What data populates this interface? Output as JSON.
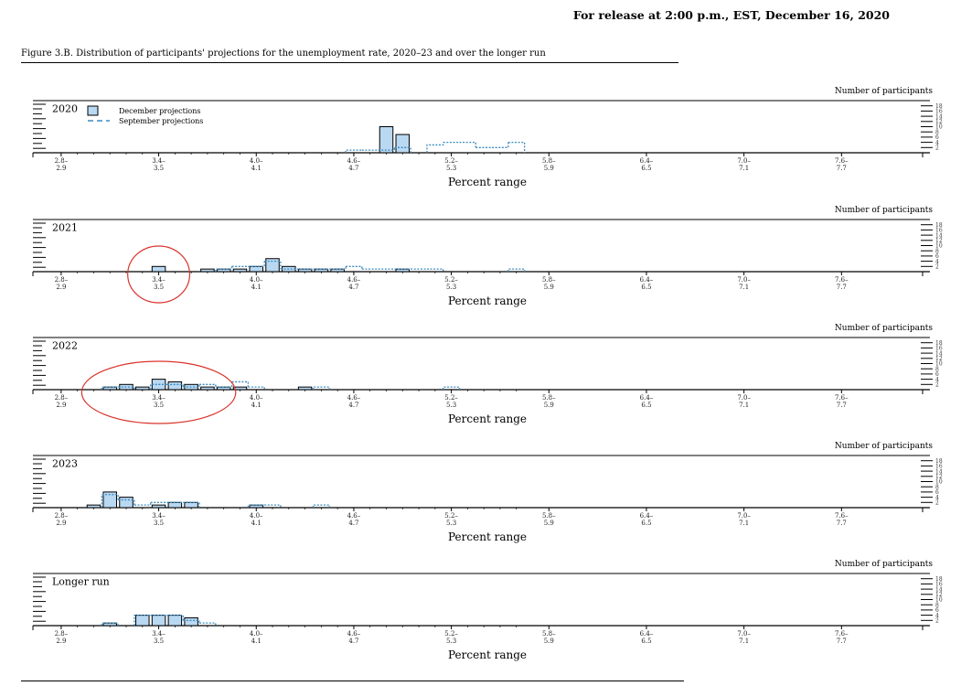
{
  "header": {
    "release": "For release at 2:00 p.m., EST, December 16, 2020",
    "figure_title": "Figure 3.B. Distribution of participants' projections for the unemployment rate, 2020–23 and over the longer run"
  },
  "colors": {
    "december_fill": "#b9d8f2",
    "september_line": "#3b8bbf",
    "annotation_circle": "#d9342b"
  },
  "chart_data": [
    {
      "type": "bar",
      "panel_label": "2020",
      "ylabel": "Number of participants",
      "xlabel": "Percent range",
      "categories": [
        "2.8–2.9",
        "3.0–3.1",
        "3.2–3.3",
        "3.4–3.5",
        "3.6–3.7",
        "3.8–3.9",
        "4.0–4.1",
        "4.2–4.3",
        "4.4–4.5",
        "4.6–4.7",
        "4.8–4.9",
        "5.0–5.1",
        "5.2–5.3",
        "5.4–5.5",
        "5.6–5.7",
        "5.8–5.9",
        "6.0–6.1",
        "6.2–6.3",
        "6.4–6.5",
        "6.6–6.7",
        "6.8–6.9",
        "7.0–7.1",
        "7.2–7.3",
        "7.4–7.5",
        "7.6–7.7",
        "7.8–7.9",
        "8.0–8.1",
        "8.2–8.3",
        "8.4–8.5"
      ],
      "tick_labels": [
        [
          "2.8–",
          "2.9"
        ],
        [
          "3.4–",
          "3.5"
        ],
        [
          "4.0–",
          "4.1"
        ],
        [
          "4.6–",
          "4.7"
        ],
        [
          "5.2–",
          "5.3"
        ],
        [
          "5.8–",
          "5.9"
        ],
        [
          "6.4–",
          "6.5"
        ],
        [
          "7.0–",
          "7.1"
        ],
        [
          "7.6–",
          "7.7"
        ]
      ],
      "ylim": [
        0,
        18
      ],
      "yticks": [
        "2",
        "4",
        "6",
        "8",
        "10",
        "12",
        "14",
        "16",
        "18"
      ],
      "legend": {
        "placement": "top-left",
        "december": "December projections",
        "september": "September projections"
      },
      "series": [
        {
          "name": "December projections",
          "values": [
            0,
            0,
            0,
            0,
            0,
            0,
            0,
            0,
            0,
            0,
            0,
            0,
            0,
            0,
            0,
            0,
            0,
            0,
            0,
            0,
            10,
            7,
            0,
            0,
            0,
            0,
            0,
            0,
            0
          ]
        },
        {
          "name": "September projections",
          "values": [
            0,
            0,
            0,
            0,
            0,
            0,
            0,
            0,
            0,
            0,
            0,
            0,
            0,
            0,
            0,
            0,
            0,
            0,
            1,
            1,
            1,
            2,
            0,
            3,
            4,
            4,
            2,
            2,
            4
          ]
        }
      ],
      "annotation": null
    },
    {
      "type": "bar",
      "panel_label": "2021",
      "ylabel": "Number of participants",
      "xlabel": "Percent range",
      "categories": [
        "2.8–2.9",
        "3.0–3.1",
        "3.2–3.3",
        "3.4–3.5",
        "3.6–3.7",
        "3.8–3.9",
        "4.0–4.1",
        "4.2–4.3",
        "4.4–4.5",
        "4.6–4.7",
        "4.8–4.9",
        "5.0–5.1",
        "5.2–5.3",
        "5.4–5.5",
        "5.6–5.7",
        "5.8–5.9",
        "6.0–6.1",
        "6.2–6.3",
        "6.4–6.5",
        "6.6–6.7",
        "6.8–6.9",
        "7.0–7.1",
        "7.2–7.3",
        "7.4–7.5",
        "7.6–7.7",
        "7.8–7.9",
        "8.0–8.1",
        "8.2–8.3",
        "8.4–8.5"
      ],
      "tick_labels": [
        [
          "2.8–",
          "2.9"
        ],
        [
          "3.4–",
          "3.5"
        ],
        [
          "4.0–",
          "4.1"
        ],
        [
          "4.6–",
          "4.7"
        ],
        [
          "5.2–",
          "5.3"
        ],
        [
          "5.8–",
          "5.9"
        ],
        [
          "6.4–",
          "6.5"
        ],
        [
          "7.0–",
          "7.1"
        ],
        [
          "7.6–",
          "7.7"
        ]
      ],
      "ylim": [
        0,
        18
      ],
      "yticks": [
        "2",
        "4",
        "6",
        "8",
        "10",
        "12",
        "14",
        "16",
        "18"
      ],
      "legend": null,
      "series": [
        {
          "name": "December projections",
          "values": [
            0,
            0,
            0,
            0,
            0,
            0,
            2,
            0,
            0,
            1,
            1,
            1,
            2,
            5,
            2,
            1,
            1,
            1,
            0,
            0,
            0,
            1,
            0,
            0,
            0,
            0,
            0,
            0,
            0
          ]
        },
        {
          "name": "September projections",
          "values": [
            0,
            0,
            0,
            0,
            0,
            0,
            0,
            0,
            0,
            0,
            1,
            2,
            2,
            4,
            1,
            1,
            1,
            1,
            2,
            1,
            1,
            1,
            1,
            1,
            0,
            0,
            0,
            0,
            1
          ]
        }
      ],
      "annotation": {
        "from": 6,
        "to": 6
      }
    },
    {
      "type": "bar",
      "panel_label": "2022",
      "ylabel": "Number of participants",
      "xlabel": "Percent range",
      "categories": [
        "2.8–2.9",
        "3.0–3.1",
        "3.2–3.3",
        "3.4–3.5",
        "3.6–3.7",
        "3.8–3.9",
        "4.0–4.1",
        "4.2–4.3",
        "4.4–4.5",
        "4.6–4.7",
        "4.8–4.9",
        "5.0–5.1",
        "5.2–5.3",
        "5.4–5.5",
        "5.6–5.7",
        "5.8–5.9",
        "6.0–6.1",
        "6.2–6.3",
        "6.4–6.5",
        "6.6–6.7",
        "6.8–6.9",
        "7.0–7.1",
        "7.2–7.3",
        "7.4–7.5",
        "7.6–7.7",
        "7.8–7.9",
        "8.0–8.1",
        "8.2–8.3",
        "8.4–8.5"
      ],
      "tick_labels": [
        [
          "2.8–",
          "2.9"
        ],
        [
          "3.4–",
          "3.5"
        ],
        [
          "4.0–",
          "4.1"
        ],
        [
          "4.6–",
          "4.7"
        ],
        [
          "5.2–",
          "5.3"
        ],
        [
          "5.8–",
          "5.9"
        ],
        [
          "6.4–",
          "6.5"
        ],
        [
          "7.0–",
          "7.1"
        ],
        [
          "7.6–",
          "7.7"
        ]
      ],
      "ylim": [
        0,
        18
      ],
      "yticks": [
        "2",
        "4",
        "6",
        "8",
        "10",
        "12",
        "14",
        "16",
        "18"
      ],
      "legend": null,
      "series": [
        {
          "name": "December projections",
          "values": [
            0,
            0,
            0,
            1,
            2,
            1,
            4,
            3,
            2,
            1,
            1,
            1,
            0,
            0,
            0,
            1,
            0,
            0,
            0,
            0,
            0,
            0,
            0,
            0,
            0,
            0,
            0,
            0,
            0
          ]
        },
        {
          "name": "September projections",
          "values": [
            0,
            0,
            0,
            1,
            1,
            0,
            2,
            2,
            1,
            2,
            1,
            3,
            1,
            0,
            0,
            0,
            1,
            0,
            0,
            0,
            0,
            0,
            0,
            0,
            1,
            0,
            0,
            0,
            0
          ]
        }
      ],
      "annotation": {
        "from": 3,
        "to": 9
      }
    },
    {
      "type": "bar",
      "panel_label": "2023",
      "ylabel": "Number of participants",
      "xlabel": "Percent range",
      "categories": [
        "2.8–2.9",
        "3.0–3.1",
        "3.2–3.3",
        "3.4–3.5",
        "3.6–3.7",
        "3.8–3.9",
        "4.0–4.1",
        "4.2–4.3",
        "4.4–4.5",
        "4.6–4.7",
        "4.8–4.9",
        "5.0–5.1",
        "5.2–5.3",
        "5.4–5.5",
        "5.6–5.7",
        "5.8–5.9",
        "6.0–6.1",
        "6.2–6.3",
        "6.4–6.5",
        "6.6–6.7",
        "6.8–6.9",
        "7.0–7.1",
        "7.2–7.3",
        "7.4–7.5",
        "7.6–7.7",
        "7.8–7.9",
        "8.0–8.1",
        "8.2–8.3",
        "8.4–8.5"
      ],
      "tick_labels": [
        [
          "2.8–",
          "2.9"
        ],
        [
          "3.4–",
          "3.5"
        ],
        [
          "4.0–",
          "4.1"
        ],
        [
          "4.6–",
          "4.7"
        ],
        [
          "5.2–",
          "5.3"
        ],
        [
          "5.8–",
          "5.9"
        ],
        [
          "6.4–",
          "6.5"
        ],
        [
          "7.0–",
          "7.1"
        ],
        [
          "7.6–",
          "7.7"
        ]
      ],
      "ylim": [
        0,
        18
      ],
      "yticks": [
        "2",
        "4",
        "6",
        "8",
        "10",
        "12",
        "14",
        "16",
        "18"
      ],
      "legend": null,
      "series": [
        {
          "name": "December projections",
          "values": [
            0,
            0,
            1,
            6,
            4,
            0,
            1,
            2,
            2,
            0,
            0,
            0,
            1,
            0,
            0,
            0,
            0,
            0,
            0,
            0,
            0,
            0,
            0,
            0,
            0,
            0,
            0,
            0,
            0
          ]
        },
        {
          "name": "September projections",
          "values": [
            0,
            0,
            0,
            5,
            3,
            1,
            2,
            2,
            2,
            0,
            0,
            0,
            1,
            1,
            0,
            0,
            1,
            0,
            0,
            0,
            0,
            0,
            0,
            0,
            0,
            0,
            0,
            0,
            0
          ]
        }
      ],
      "annotation": null
    },
    {
      "type": "bar",
      "panel_label": "Longer run",
      "ylabel": "Number of participants",
      "xlabel": "Percent range",
      "categories": [
        "2.8–2.9",
        "3.0–3.1",
        "3.2–3.3",
        "3.4–3.5",
        "3.6–3.7",
        "3.8–3.9",
        "4.0–4.1",
        "4.2–4.3",
        "4.4–4.5",
        "4.6–4.7",
        "4.8–4.9",
        "5.0–5.1",
        "5.2–5.3",
        "5.4–5.5",
        "5.6–5.7",
        "5.8–5.9",
        "6.0–6.1",
        "6.2–6.3",
        "6.4–6.5",
        "6.6–6.7",
        "6.8–6.9",
        "7.0–7.1",
        "7.2–7.3",
        "7.4–7.5",
        "7.6–7.7",
        "7.8–7.9",
        "8.0–8.1",
        "8.2–8.3",
        "8.4–8.5"
      ],
      "tick_labels": [
        [
          "2.8–",
          "2.9"
        ],
        [
          "3.4–",
          "3.5"
        ],
        [
          "4.0–",
          "4.1"
        ],
        [
          "4.6–",
          "4.7"
        ],
        [
          "5.2–",
          "5.3"
        ],
        [
          "5.8–",
          "5.9"
        ],
        [
          "6.4–",
          "6.5"
        ],
        [
          "7.0–",
          "7.1"
        ],
        [
          "7.6–",
          "7.7"
        ]
      ],
      "ylim": [
        0,
        18
      ],
      "yticks": [
        "2",
        "4",
        "6",
        "8",
        "10",
        "12",
        "14",
        "16",
        "18"
      ],
      "legend": null,
      "series": [
        {
          "name": "December projections",
          "values": [
            0,
            0,
            0,
            1,
            0,
            4,
            4,
            4,
            3,
            0,
            0,
            0,
            0,
            0,
            0,
            0,
            0,
            0,
            0,
            0,
            0,
            0,
            0,
            0,
            0,
            0,
            0,
            0,
            0
          ]
        },
        {
          "name": "September projections",
          "values": [
            0,
            0,
            0,
            1,
            0,
            4,
            4,
            4,
            2,
            1,
            0,
            0,
            0,
            0,
            0,
            0,
            0,
            0,
            0,
            0,
            0,
            0,
            0,
            0,
            0,
            0,
            0,
            0,
            0
          ]
        }
      ],
      "annotation": null
    }
  ]
}
